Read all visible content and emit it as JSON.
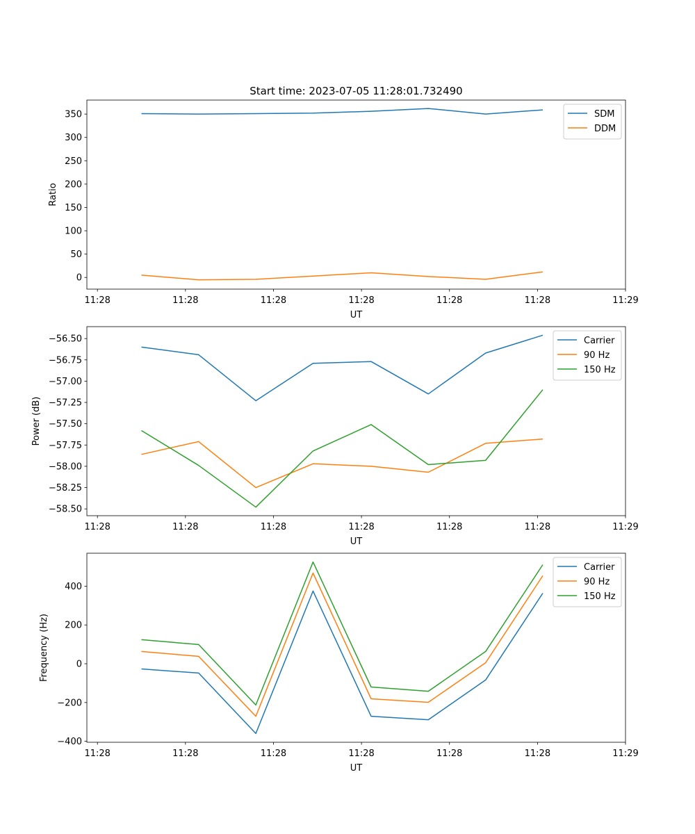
{
  "title": "Start time: 2023-07-05 11:28:01.732490",
  "colors": {
    "blue": "#1f77b4",
    "orange": "#ff7f0e",
    "green": "#2ca02c"
  },
  "chart_data": [
    {
      "type": "line",
      "xlabel": "UT",
      "ylabel": "Ratio",
      "x_seconds_after_1128": [
        5.0,
        11.5,
        18.0,
        24.5,
        31.1,
        37.6,
        44.1,
        50.6
      ],
      "xlim": [
        -1.2,
        60
      ],
      "xticks": [
        0,
        10,
        20,
        30,
        40,
        50,
        60
      ],
      "xtick_labels": [
        "11:28",
        "11:28",
        "11:28",
        "11:28",
        "11:28",
        "11:28",
        "11:29"
      ],
      "ylim": [
        -25,
        380
      ],
      "yticks": [
        0,
        50,
        100,
        150,
        200,
        250,
        300,
        350
      ],
      "ytick_labels": [
        "0",
        "50",
        "100",
        "150",
        "200",
        "250",
        "300",
        "350"
      ],
      "legend": "top-right",
      "series": [
        {
          "name": "SDM",
          "color": "#1f77b4",
          "values": [
            351,
            350,
            351,
            352,
            356,
            362,
            350,
            359
          ]
        },
        {
          "name": "DDM",
          "color": "#ff7f0e",
          "values": [
            5,
            -5,
            -4,
            3,
            10,
            2,
            -4,
            12
          ]
        }
      ]
    },
    {
      "type": "line",
      "xlabel": "UT",
      "ylabel": "Power (dB)",
      "x_seconds_after_1128": [
        5.0,
        11.5,
        18.0,
        24.5,
        31.1,
        37.6,
        44.1,
        50.6
      ],
      "xlim": [
        -1.2,
        60
      ],
      "xticks": [
        0,
        10,
        20,
        30,
        40,
        50,
        60
      ],
      "xtick_labels": [
        "11:28",
        "11:28",
        "11:28",
        "11:28",
        "11:28",
        "11:28",
        "11:29"
      ],
      "ylim": [
        -58.58,
        -56.36
      ],
      "yticks": [
        -58.5,
        -58.25,
        -58.0,
        -57.75,
        -57.5,
        -57.25,
        -57.0,
        -56.75,
        -56.5
      ],
      "ytick_labels": [
        "−58.50",
        "−58.25",
        "−58.00",
        "−57.75",
        "−57.50",
        "−57.25",
        "−57.00",
        "−56.75",
        "−56.50"
      ],
      "legend": "top-right",
      "series": [
        {
          "name": "Carrier",
          "color": "#1f77b4",
          "values": [
            -56.6,
            -56.69,
            -57.23,
            -56.79,
            -56.77,
            -57.15,
            -56.67,
            -56.46
          ]
        },
        {
          "name": "90 Hz",
          "color": "#ff7f0e",
          "values": [
            -57.86,
            -57.71,
            -58.25,
            -57.97,
            -58.0,
            -58.07,
            -57.73,
            -57.68
          ]
        },
        {
          "name": "150 Hz",
          "color": "#2ca02c",
          "values": [
            -57.58,
            -57.99,
            -58.48,
            -57.82,
            -57.51,
            -57.98,
            -57.93,
            -57.1
          ]
        }
      ]
    },
    {
      "type": "line",
      "xlabel": "UT",
      "ylabel": "Frequency (Hz)",
      "x_seconds_after_1128": [
        5.0,
        11.5,
        18.0,
        24.5,
        31.1,
        37.6,
        44.1,
        50.6
      ],
      "xlim": [
        -1.2,
        60
      ],
      "xticks": [
        0,
        10,
        20,
        30,
        40,
        50,
        60
      ],
      "xtick_labels": [
        "11:28",
        "11:28",
        "11:28",
        "11:28",
        "11:28",
        "11:28",
        "11:29"
      ],
      "ylim": [
        -405,
        570
      ],
      "yticks": [
        -400,
        -200,
        0,
        200,
        400
      ],
      "ytick_labels": [
        "−400",
        "−200",
        "0",
        "200",
        "400"
      ],
      "legend": "top-right",
      "series": [
        {
          "name": "Carrier",
          "color": "#1f77b4",
          "values": [
            -27,
            -48,
            -360,
            375,
            -271,
            -289,
            -84,
            364
          ]
        },
        {
          "name": "90 Hz",
          "color": "#ff7f0e",
          "values": [
            63,
            38,
            -271,
            468,
            -181,
            -199,
            5,
            454
          ]
        },
        {
          "name": "150 Hz",
          "color": "#2ca02c",
          "values": [
            124,
            99,
            -213,
            525,
            -120,
            -142,
            63,
            511
          ]
        }
      ]
    }
  ]
}
